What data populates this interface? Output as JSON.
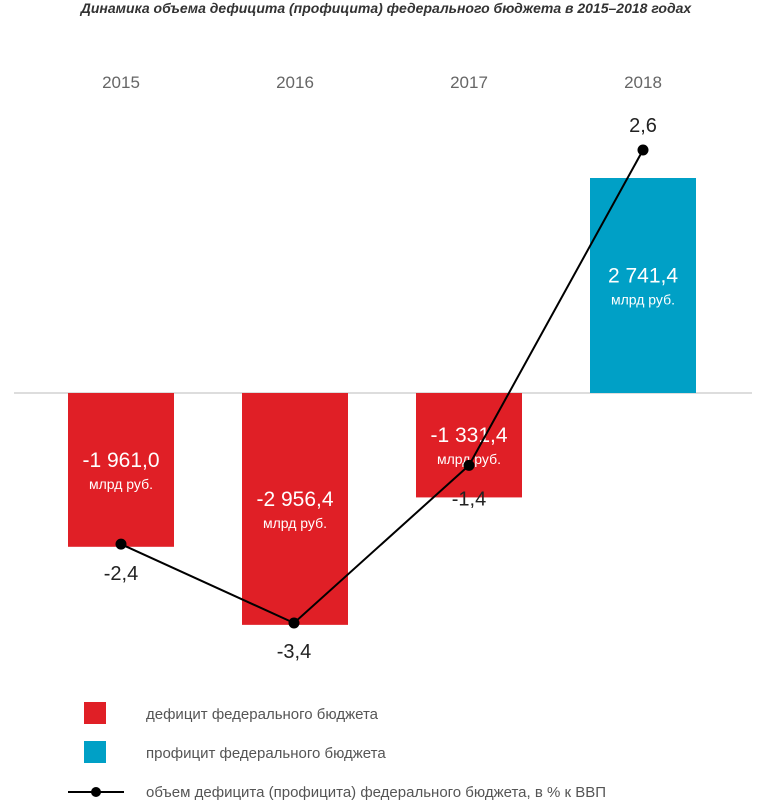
{
  "chart_data": {
    "type": "bar",
    "title": "Динамика объема дефицита (профицита) федерального бюджета в 2015–2018 годах",
    "categories": [
      "2015",
      "2016",
      "2017",
      "2018"
    ],
    "series": [
      {
        "name": "дефицит / профицит федерального бюджета",
        "unit": "млрд руб.",
        "values": [
          -1961.0,
          -2956.4,
          -1331.4,
          2741.4
        ],
        "labels": [
          "-1 961,0",
          "-2 956,4",
          "-1 331,4",
          "2 741,4"
        ]
      },
      {
        "name": "объем дефицита (профицита) федерального бюджета, в % к ВВП",
        "type": "line",
        "values": [
          -2.4,
          -3.4,
          -1.4,
          2.6
        ],
        "labels": [
          "-2,4",
          "-3,4",
          "-1,4",
          "2,6"
        ]
      }
    ],
    "unit_label": "млрд руб.",
    "colors": {
      "deficit": "#e01f26",
      "surplus": "#00a0c6",
      "line": "#000000",
      "axis": "#bbbbbb"
    },
    "legend": [
      {
        "key": "deficit",
        "label": "дефицит федерального бюджета"
      },
      {
        "key": "surplus",
        "label": "профицит федерального бюджета"
      },
      {
        "key": "line",
        "label": "объем дефицита (профицита) федерального бюджета, в % к ВВП"
      }
    ],
    "legend_position": "bottom"
  }
}
